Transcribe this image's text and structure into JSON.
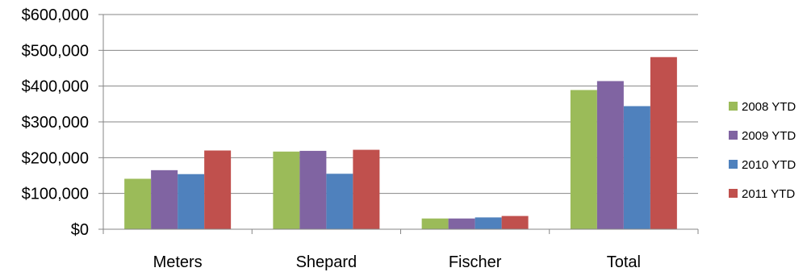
{
  "chart_data": {
    "type": "bar",
    "title": "",
    "xlabel": "",
    "ylabel": "",
    "categories": [
      "Meters",
      "Shepard",
      "Fischer",
      "Total"
    ],
    "series": [
      {
        "name": "2008 YTD",
        "color": "#9BBB59",
        "values": [
          141000,
          217000,
          30000,
          389000
        ]
      },
      {
        "name": "2009 YTD",
        "color": "#8064A2",
        "values": [
          165000,
          219000,
          30000,
          414000
        ]
      },
      {
        "name": "2010 YTD",
        "color": "#4F81BD",
        "values": [
          154000,
          155000,
          33000,
          344000
        ]
      },
      {
        "name": "2011 YTD",
        "color": "#C0504D",
        "values": [
          220000,
          222000,
          37000,
          481000
        ]
      }
    ],
    "ylim": [
      0,
      600000
    ],
    "yticks": [
      0,
      100000,
      200000,
      300000,
      400000,
      500000,
      600000
    ],
    "ytick_labels": [
      "$0",
      "$100,000",
      "$200,000",
      "$300,000",
      "$400,000",
      "$500,000",
      "$600,000"
    ],
    "grid": true,
    "legend_position": "right"
  }
}
